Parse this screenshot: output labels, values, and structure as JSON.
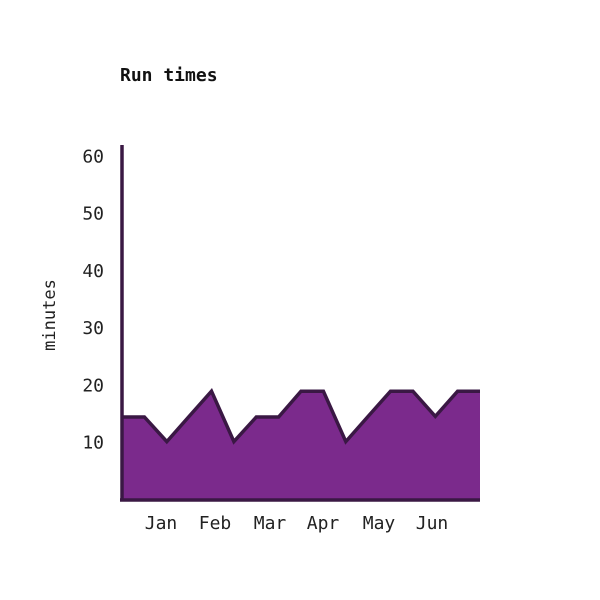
{
  "chart_data": {
    "type": "area",
    "title": "Run times",
    "xlabel": "",
    "ylabel": "minutes",
    "x_tick_labels": [
      "Jan",
      "Feb",
      "Mar",
      "Apr",
      "May",
      "Jun"
    ],
    "y_ticks": [
      10,
      20,
      30,
      40,
      50,
      60
    ],
    "ylim": [
      0,
      62
    ],
    "grid": false,
    "series": [
      {
        "values": [
          14.5,
          14.5,
          10.2,
          14.6,
          19,
          10.2,
          14.5,
          14.5,
          19,
          19,
          10.2,
          14.6,
          19,
          19,
          14.6,
          19,
          19
        ]
      }
    ],
    "colors": {
      "fill": "#7b2a8c",
      "line": "#3a1844",
      "axis": "#3a1844"
    }
  }
}
